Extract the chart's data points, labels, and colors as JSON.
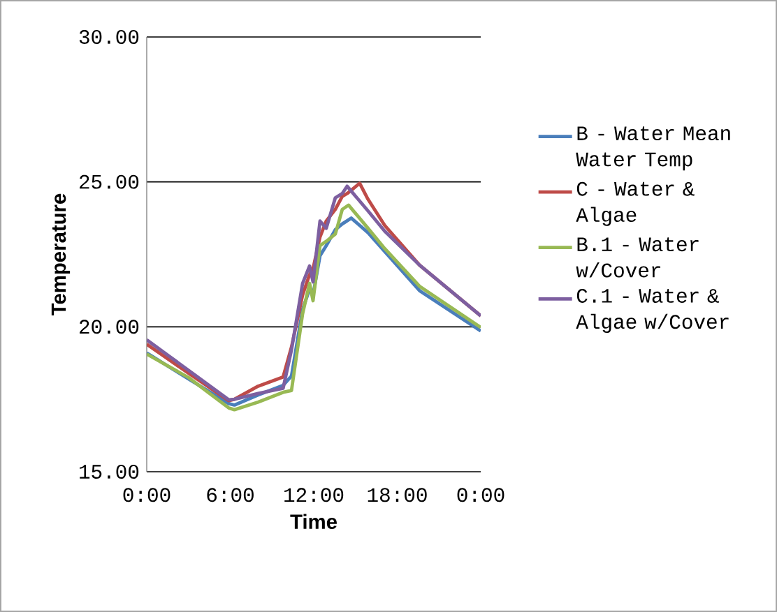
{
  "chart_data": {
    "type": "line",
    "xlabel": "Time",
    "ylabel": "Temperature",
    "xlim": [
      0,
      24
    ],
    "ylim": [
      15,
      30
    ],
    "xticks": [
      {
        "value": 0,
        "label": "0:00"
      },
      {
        "value": 6,
        "label": "6:00"
      },
      {
        "value": 12,
        "label": "12:00"
      },
      {
        "value": 18,
        "label": "18:00"
      },
      {
        "value": 24,
        "label": "0:00"
      }
    ],
    "yticks": [
      {
        "value": 15,
        "label": "15.00"
      },
      {
        "value": 20,
        "label": "20.00"
      },
      {
        "value": 25,
        "label": "25.00"
      },
      {
        "value": 30,
        "label": "30.00"
      }
    ],
    "grid": "y",
    "legend": "right",
    "marker": "none",
    "line_style": "solid",
    "series": [
      {
        "name": "B - Water Mean Water Temp",
        "color": "#4a7ebb",
        "x": [
          0,
          3,
          5.9,
          6.3,
          8,
          9.8,
          10.4,
          11.2,
          11.7,
          11.95,
          12.45,
          12.9,
          13.55,
          14.05,
          14.7,
          15.9,
          17.1,
          19.6,
          24
        ],
        "values": [
          19.1,
          18.2,
          17.35,
          17.3,
          17.65,
          17.98,
          18.3,
          20.6,
          21.3,
          21.1,
          22.45,
          22.8,
          23.35,
          23.55,
          23.75,
          23.25,
          22.6,
          21.25,
          19.86
        ]
      },
      {
        "name": "C - Water & Algae",
        "color": "#be4b48",
        "x": [
          0,
          3,
          5.9,
          6.3,
          8,
          9.8,
          10.4,
          11.2,
          11.7,
          11.95,
          12.45,
          12.9,
          13.55,
          14.05,
          14.4,
          15.3,
          15.9,
          17.1,
          19.6,
          24
        ],
        "values": [
          19.4,
          18.4,
          17.45,
          17.5,
          17.95,
          18.27,
          19.3,
          21.1,
          21.8,
          22.0,
          23.1,
          23.65,
          24.05,
          24.5,
          24.6,
          24.95,
          24.4,
          23.5,
          22.13,
          20.38
        ]
      },
      {
        "name": "B.1 - Water w/Cover",
        "color": "#98b954",
        "x": [
          0,
          3,
          5.9,
          6.3,
          8,
          9.8,
          10.4,
          11.2,
          11.7,
          11.95,
          12.45,
          12.9,
          13.55,
          14.05,
          14.5,
          15.9,
          17.1,
          19.6,
          24
        ],
        "values": [
          19.06,
          18.25,
          17.2,
          17.14,
          17.4,
          17.74,
          17.8,
          20.45,
          21.5,
          20.9,
          22.8,
          22.95,
          23.2,
          24.05,
          24.2,
          23.4,
          22.7,
          21.4,
          19.98
        ]
      },
      {
        "name": "C.1 - Water & Algae w/Cover",
        "color": "#7d5fa0",
        "x": [
          0,
          3,
          5.9,
          6.3,
          8,
          9.8,
          10.4,
          11.2,
          11.7,
          11.95,
          12.45,
          12.9,
          13.55,
          14.05,
          14.4,
          15.9,
          17.1,
          19.6,
          24
        ],
        "values": [
          19.55,
          18.5,
          17.48,
          17.5,
          17.7,
          17.88,
          19.2,
          21.5,
          22.1,
          21.55,
          23.65,
          23.4,
          24.45,
          24.6,
          24.85,
          24.0,
          23.3,
          22.13,
          20.38
        ]
      }
    ]
  }
}
